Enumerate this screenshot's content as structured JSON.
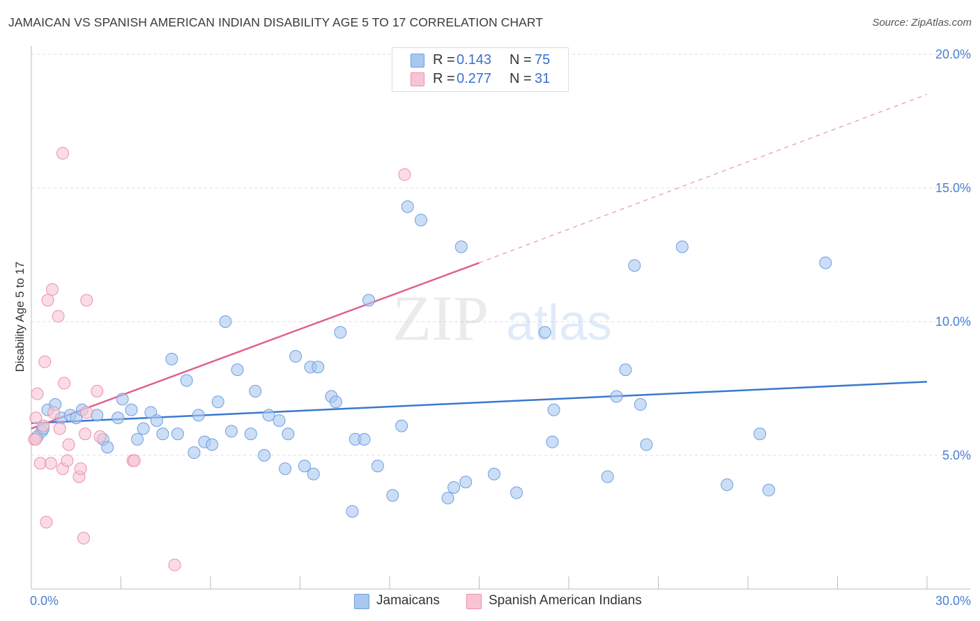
{
  "title": "JAMAICAN VS SPANISH AMERICAN INDIAN DISABILITY AGE 5 TO 17 CORRELATION CHART",
  "source": "Source: ZipAtlas.com",
  "watermark": {
    "zip": "ZIP",
    "atlas": "atlas"
  },
  "legend_top": {
    "rows": [
      {
        "r_label": "R =",
        "r_value": "0.143",
        "n_label": "N =",
        "n_value": "75",
        "color": "#a8c8f0"
      },
      {
        "r_label": "R =",
        "r_value": "0.277",
        "n_label": "N =",
        "n_value": "31",
        "color": "#f8b8cc"
      }
    ]
  },
  "legend_bottom": {
    "items": [
      {
        "label": "Jamaicans",
        "color": "#a8c8f0"
      },
      {
        "label": "Spanish American Indians",
        "color": "#f8b8cc"
      }
    ]
  },
  "colors": {
    "jamaican_fill": "#a8c8f0",
    "jamaican_stroke": "#6f9de0",
    "jamaican_line": "#3a78d0",
    "spanish_fill": "#f8c4d4",
    "spanish_stroke": "#e890ac",
    "spanish_line": "#e0608a",
    "axis_text": "#4a7fd0",
    "grid": "#dddddd"
  },
  "chart_data": {
    "type": "scatter",
    "title": "JAMAICAN VS SPANISH AMERICAN INDIAN DISABILITY AGE 5 TO 17 CORRELATION CHART",
    "xlabel": "",
    "ylabel": "Disability Age 5 to 17",
    "xlim": [
      0,
      30
    ],
    "ylim": [
      0,
      20
    ],
    "x_tick_labels": [
      {
        "value": 0,
        "label": "0.0%"
      },
      {
        "value": 30,
        "label": "30.0%"
      }
    ],
    "y_tick_labels": [
      {
        "value": 5,
        "label": "5.0%"
      },
      {
        "value": 10,
        "label": "10.0%"
      },
      {
        "value": 15,
        "label": "15.0%"
      },
      {
        "value": 20,
        "label": "20.0%"
      }
    ],
    "grid": true,
    "legend_position": "top-center",
    "series": [
      {
        "name": "Jamaicans",
        "r": 0.143,
        "n": 75,
        "trend": {
          "x": [
            0,
            30
          ],
          "y": [
            6.2,
            7.75
          ],
          "dashed_after": null
        },
        "points": [
          [
            0.2,
            5.7
          ],
          [
            0.35,
            5.9
          ],
          [
            0.4,
            6.0
          ],
          [
            0.55,
            6.7
          ],
          [
            0.8,
            6.9
          ],
          [
            1.0,
            6.4
          ],
          [
            1.3,
            6.5
          ],
          [
            1.5,
            6.4
          ],
          [
            1.7,
            6.7
          ],
          [
            2.2,
            6.5
          ],
          [
            2.4,
            5.6
          ],
          [
            2.55,
            5.3
          ],
          [
            2.9,
            6.4
          ],
          [
            3.05,
            7.1
          ],
          [
            3.35,
            6.7
          ],
          [
            3.55,
            5.6
          ],
          [
            3.75,
            6.0
          ],
          [
            4.0,
            6.6
          ],
          [
            4.2,
            6.3
          ],
          [
            4.4,
            5.8
          ],
          [
            4.7,
            8.6
          ],
          [
            4.9,
            5.8
          ],
          [
            5.2,
            7.8
          ],
          [
            5.45,
            5.1
          ],
          [
            5.6,
            6.5
          ],
          [
            5.8,
            5.5
          ],
          [
            6.05,
            5.4
          ],
          [
            6.25,
            7.0
          ],
          [
            6.5,
            10.0
          ],
          [
            6.7,
            5.9
          ],
          [
            6.9,
            8.2
          ],
          [
            7.35,
            5.8
          ],
          [
            7.5,
            7.4
          ],
          [
            7.8,
            5.0
          ],
          [
            7.95,
            6.5
          ],
          [
            8.3,
            6.3
          ],
          [
            8.5,
            4.5
          ],
          [
            8.6,
            5.8
          ],
          [
            8.85,
            8.7
          ],
          [
            9.15,
            4.6
          ],
          [
            9.35,
            8.3
          ],
          [
            9.45,
            4.3
          ],
          [
            9.6,
            8.3
          ],
          [
            10.05,
            7.2
          ],
          [
            10.2,
            7.0
          ],
          [
            10.35,
            9.6
          ],
          [
            10.75,
            2.9
          ],
          [
            10.85,
            5.6
          ],
          [
            11.15,
            5.6
          ],
          [
            11.3,
            10.8
          ],
          [
            11.6,
            4.6
          ],
          [
            12.1,
            3.5
          ],
          [
            12.4,
            6.1
          ],
          [
            12.6,
            14.3
          ],
          [
            13.05,
            13.8
          ],
          [
            13.95,
            3.4
          ],
          [
            14.15,
            3.8
          ],
          [
            14.4,
            12.8
          ],
          [
            14.55,
            4.0
          ],
          [
            15.5,
            4.3
          ],
          [
            16.25,
            3.6
          ],
          [
            17.2,
            9.6
          ],
          [
            17.45,
            5.5
          ],
          [
            17.5,
            6.7
          ],
          [
            19.3,
            4.2
          ],
          [
            19.6,
            7.2
          ],
          [
            19.9,
            8.2
          ],
          [
            20.2,
            12.1
          ],
          [
            20.4,
            6.9
          ],
          [
            20.6,
            5.4
          ],
          [
            21.8,
            12.8
          ],
          [
            23.3,
            3.9
          ],
          [
            24.4,
            5.8
          ],
          [
            24.7,
            3.7
          ],
          [
            26.6,
            12.2
          ]
        ]
      },
      {
        "name": "Spanish American Indians",
        "r": 0.277,
        "n": 31,
        "trend": {
          "x": [
            0,
            15
          ],
          "y": [
            6.0,
            12.2
          ],
          "dashed_to": {
            "x": 30,
            "y": 18.5
          }
        },
        "points": [
          [
            0.1,
            5.6
          ],
          [
            0.15,
            6.4
          ],
          [
            0.2,
            7.3
          ],
          [
            0.3,
            4.7
          ],
          [
            0.4,
            6.1
          ],
          [
            0.45,
            8.5
          ],
          [
            0.5,
            2.5
          ],
          [
            0.55,
            10.8
          ],
          [
            0.65,
            4.7
          ],
          [
            0.7,
            11.2
          ],
          [
            0.75,
            6.6
          ],
          [
            0.9,
            10.2
          ],
          [
            0.95,
            6.0
          ],
          [
            1.05,
            16.3
          ],
          [
            1.05,
            4.5
          ],
          [
            1.1,
            7.7
          ],
          [
            1.2,
            4.8
          ],
          [
            1.25,
            5.4
          ],
          [
            1.6,
            4.2
          ],
          [
            1.65,
            4.5
          ],
          [
            1.75,
            1.9
          ],
          [
            1.8,
            5.8
          ],
          [
            1.85,
            10.8
          ],
          [
            1.85,
            6.6
          ],
          [
            2.2,
            7.4
          ],
          [
            2.3,
            5.7
          ],
          [
            3.4,
            4.8
          ],
          [
            3.45,
            4.8
          ],
          [
            4.8,
            0.9
          ],
          [
            12.5,
            15.5
          ],
          [
            0.15,
            5.6
          ]
        ]
      }
    ]
  }
}
